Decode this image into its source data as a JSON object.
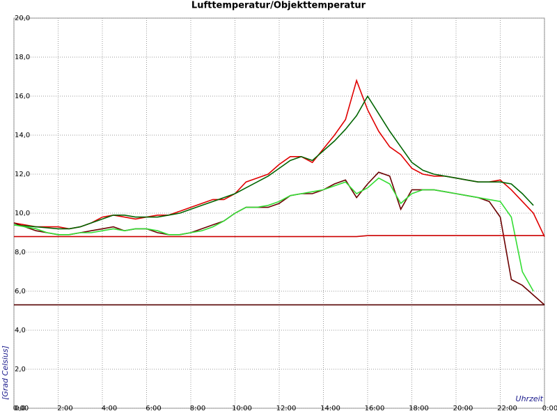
{
  "chart_data": {
    "type": "line",
    "title": "Lufttemperatur/Objekttemperatur",
    "x_label": "Uhrzeit",
    "y_label": "[Grad Celsius]",
    "x": [
      0,
      0.5,
      1,
      1.5,
      2,
      2.5,
      3,
      3.5,
      4,
      4.5,
      5,
      5.5,
      6,
      6.5,
      7,
      7.5,
      8,
      8.5,
      9,
      9.5,
      10,
      10.5,
      11,
      11.5,
      12,
      12.5,
      13,
      13.5,
      14,
      14.5,
      15,
      15.5,
      16,
      16.5,
      17,
      17.5,
      18,
      18.5,
      19,
      19.5,
      20,
      20.5,
      21,
      21.5,
      22,
      22.5,
      23,
      23.5,
      24
    ],
    "series": [
      {
        "color": "#e00000",
        "values": [
          9.5,
          9.4,
          9.3,
          9.3,
          9.3,
          9.2,
          9.3,
          9.5,
          9.8,
          9.9,
          9.8,
          9.7,
          9.8,
          9.9,
          9.9,
          10.1,
          10.3,
          10.5,
          10.7,
          10.7,
          11.0,
          11.6,
          11.8,
          12.0,
          12.5,
          12.9,
          12.9,
          12.6,
          13.3,
          14.0,
          14.8,
          16.8,
          15.3,
          14.2,
          13.4,
          13.0,
          12.3,
          12.0,
          11.9,
          11.9,
          11.8,
          11.7,
          11.6,
          11.6,
          11.7,
          11.2,
          10.6,
          10.0,
          8.8
        ]
      },
      {
        "color": "#006400",
        "values": [
          9.4,
          9.35,
          9.3,
          9.25,
          9.2,
          9.2,
          9.3,
          9.5,
          9.7,
          9.9,
          9.9,
          9.8,
          9.8,
          9.8,
          9.9,
          10.0,
          10.2,
          10.4,
          10.6,
          10.8,
          11.0,
          11.3,
          11.6,
          11.9,
          12.3,
          12.7,
          12.9,
          12.7,
          13.2,
          13.7,
          14.3,
          15.0,
          16.0,
          15.1,
          14.2,
          13.4,
          12.6,
          12.2,
          12.0,
          11.9,
          11.8,
          11.7,
          11.6,
          11.6,
          11.6,
          11.5,
          11.0,
          10.4,
          null
        ]
      },
      {
        "color": "#6b0000",
        "values": [
          9.5,
          9.3,
          9.1,
          9.0,
          8.9,
          8.9,
          9.0,
          9.1,
          9.2,
          9.3,
          9.1,
          9.2,
          9.2,
          9.0,
          8.9,
          8.9,
          9.0,
          9.2,
          9.4,
          9.6,
          10.0,
          10.3,
          10.3,
          10.3,
          10.5,
          10.9,
          11.0,
          11.0,
          11.2,
          11.5,
          11.7,
          10.8,
          11.5,
          12.1,
          11.9,
          10.2,
          11.2,
          11.2,
          11.2,
          11.1,
          11.0,
          10.9,
          10.8,
          10.6,
          9.8,
          6.6,
          6.3,
          5.8,
          5.3
        ]
      },
      {
        "color": "#33dd33",
        "values": [
          9.4,
          9.3,
          9.2,
          9.0,
          8.9,
          8.9,
          9.0,
          9.0,
          9.1,
          9.2,
          9.1,
          9.2,
          9.2,
          9.1,
          8.9,
          8.9,
          9.0,
          9.1,
          9.3,
          9.6,
          10.0,
          10.3,
          10.3,
          10.4,
          10.6,
          10.9,
          11.0,
          11.1,
          11.2,
          11.4,
          11.6,
          11.0,
          11.3,
          11.8,
          11.5,
          10.5,
          11.0,
          11.2,
          11.2,
          11.1,
          11.0,
          10.9,
          10.8,
          10.7,
          10.6,
          9.8,
          7.0,
          6.0,
          null
        ]
      },
      {
        "color": "#cc0000",
        "values": [
          8.8,
          8.8,
          8.8,
          8.8,
          8.8,
          8.8,
          8.8,
          8.8,
          8.8,
          8.8,
          8.8,
          8.8,
          8.8,
          8.8,
          8.8,
          8.8,
          8.8,
          8.8,
          8.8,
          8.8,
          8.8,
          8.8,
          8.8,
          8.8,
          8.8,
          8.8,
          8.8,
          8.8,
          8.8,
          8.8,
          8.8,
          8.8,
          8.85,
          8.85,
          8.85,
          8.85,
          8.85,
          8.85,
          8.85,
          8.85,
          8.85,
          8.85,
          8.85,
          8.85,
          8.85,
          8.85,
          8.85,
          8.85,
          8.85
        ]
      },
      {
        "color": "#550000",
        "values": [
          5.3,
          5.3,
          5.3,
          5.3,
          5.3,
          5.3,
          5.3,
          5.3,
          5.3,
          5.3,
          5.3,
          5.3,
          5.3,
          5.3,
          5.3,
          5.3,
          5.3,
          5.3,
          5.3,
          5.3,
          5.3,
          5.3,
          5.3,
          5.3,
          5.3,
          5.3,
          5.3,
          5.3,
          5.3,
          5.3,
          5.3,
          5.3,
          5.3,
          5.3,
          5.3,
          5.3,
          5.3,
          5.3,
          5.3,
          5.3,
          5.3,
          5.3,
          5.3,
          5.3,
          5.3,
          5.3,
          5.3,
          5.3,
          5.3
        ]
      }
    ],
    "xlim": [
      0,
      24
    ],
    "xticks": [
      {
        "value": 0,
        "label": "0:00"
      },
      {
        "value": 2,
        "label": "2:00"
      },
      {
        "value": 4,
        "label": "4:00"
      },
      {
        "value": 6,
        "label": "6:00"
      },
      {
        "value": 8,
        "label": "8:00"
      },
      {
        "value": 10,
        "label": "10:00"
      },
      {
        "value": 12,
        "label": "12:00"
      },
      {
        "value": 14,
        "label": "14:00"
      },
      {
        "value": 16,
        "label": "16:00"
      },
      {
        "value": 18,
        "label": "18:00"
      },
      {
        "value": 20,
        "label": "20:00"
      },
      {
        "value": 22,
        "label": "22:00"
      },
      {
        "value": 24,
        "label": "0:00"
      }
    ],
    "ylim": [
      0,
      20
    ],
    "yticks": [
      {
        "value": 0,
        "label": "0,0"
      },
      {
        "value": 2,
        "label": "2,0"
      },
      {
        "value": 4,
        "label": "4,0"
      },
      {
        "value": 6,
        "label": "6,0"
      },
      {
        "value": 8,
        "label": "8,0"
      },
      {
        "value": 10,
        "label": "10,0"
      },
      {
        "value": 12,
        "label": "12,0"
      },
      {
        "value": 14,
        "label": "14,0"
      },
      {
        "value": 16,
        "label": "16,0"
      },
      {
        "value": 18,
        "label": "18,0"
      },
      {
        "value": 20,
        "label": "20,0"
      }
    ],
    "grid": true
  }
}
